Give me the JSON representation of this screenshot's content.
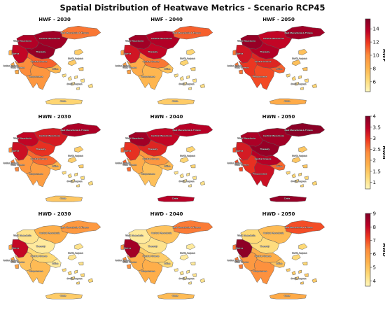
{
  "title": "Spatial Distribution of Heatwave Metrics - Scenario RCP45",
  "region_labels": {
    "epirus": "Epirus",
    "thessaly": "Thessaly",
    "ionian": "Ionian Islands",
    "north_aegean": "North Aegean",
    "south_aegean": "South Aegean",
    "east_mac": "East Macedonia & Thrace",
    "central_mac": "Central Macedonia",
    "west_mac": "West Macedonia",
    "west_greece": "West Greece",
    "central_greece": "Central Greece",
    "attica": "Attica",
    "peloponnese": "Peloponnese",
    "crete": "Crete"
  },
  "colormap": [
    "#fff7bc",
    "#fed976",
    "#feb24c",
    "#fd8d3c",
    "#f03b20",
    "#bd0026",
    "#800026"
  ],
  "rows": [
    {
      "metric": "HWF",
      "cbar_label": "HWF",
      "range": [
        4.5,
        15.5
      ],
      "ticks": [
        6,
        8,
        10,
        12,
        14
      ],
      "panels": [
        {
          "title": "HWF - 2030",
          "values": {
            "east_mac": 10.5,
            "central_mac": 14.5,
            "west_mac": 14.0,
            "epirus": 13.5,
            "thessaly": 14.8,
            "ionian": 8.5,
            "west_greece": 10.0,
            "central_greece": 11.0,
            "attica": 8.0,
            "peloponnese": 9.5,
            "north_aegean": 7.0,
            "south_aegean": 6.0,
            "crete": 6.5
          }
        },
        {
          "title": "HWF - 2040",
          "values": {
            "east_mac": 11.0,
            "central_mac": 14.0,
            "west_mac": 14.5,
            "epirus": 13.0,
            "thessaly": 13.5,
            "ionian": 9.0,
            "west_greece": 8.5,
            "central_greece": 10.5,
            "attica": 7.5,
            "peloponnese": 8.0,
            "north_aegean": 6.5,
            "south_aegean": 6.0,
            "crete": 7.0
          }
        },
        {
          "title": "HWF - 2050",
          "values": {
            "east_mac": 14.5,
            "central_mac": 13.5,
            "west_mac": 14.8,
            "epirus": 13.0,
            "thessaly": 14.0,
            "ionian": 10.5,
            "west_greece": 12.0,
            "central_greece": 12.5,
            "attica": 11.0,
            "peloponnese": 11.5,
            "north_aegean": 7.5,
            "south_aegean": 6.5,
            "crete": 8.5
          }
        }
      ]
    },
    {
      "metric": "HWN",
      "cbar_label": "HWN",
      "range": [
        0.7,
        4.0
      ],
      "ticks": [
        1.0,
        1.5,
        2.0,
        2.5,
        3.0,
        3.5,
        4.0
      ],
      "panels": [
        {
          "title": "HWN - 2030",
          "values": {
            "east_mac": 3.6,
            "central_mac": 3.2,
            "west_mac": 3.4,
            "epirus": 3.3,
            "thessaly": 3.0,
            "ionian": 2.4,
            "west_greece": 2.2,
            "central_greece": 2.6,
            "attica": 1.8,
            "peloponnese": 2.1,
            "north_aegean": 1.4,
            "south_aegean": 1.2,
            "crete": 1.5
          }
        },
        {
          "title": "HWN - 2040",
          "values": {
            "east_mac": 3.5,
            "central_mac": 3.4,
            "west_mac": 3.7,
            "epirus": 3.0,
            "thessaly": 3.1,
            "ionian": 2.6,
            "west_greece": 1.9,
            "central_greece": 2.2,
            "attica": 1.7,
            "peloponnese": 1.6,
            "north_aegean": 1.3,
            "south_aegean": 1.1,
            "crete": 3.5
          }
        },
        {
          "title": "HWN - 2050",
          "values": {
            "east_mac": 3.9,
            "central_mac": 3.7,
            "west_mac": 3.6,
            "epirus": 3.2,
            "thessaly": 3.8,
            "ionian": 2.8,
            "west_greece": 3.0,
            "central_greece": 3.5,
            "attica": 2.6,
            "peloponnese": 3.3,
            "north_aegean": 1.5,
            "south_aegean": 1.3,
            "crete": 3.8
          }
        }
      ]
    },
    {
      "metric": "HWD",
      "cbar_label": "HWD",
      "range": [
        3.6,
        9.0
      ],
      "ticks": [
        4,
        5,
        6,
        7,
        8,
        9
      ],
      "panels": [
        {
          "title": "HWD - 2030",
          "values": {
            "east_mac": 6.0,
            "central_mac": 5.5,
            "west_mac": 4.2,
            "epirus": 8.0,
            "thessaly": 4.0,
            "ionian": 5.8,
            "west_greece": 5.0,
            "central_greece": 4.5,
            "attica": 4.0,
            "peloponnese": 5.2,
            "north_aegean": 4.2,
            "south_aegean": 4.5,
            "crete": 4.8
          }
        },
        {
          "title": "HWD - 2040",
          "values": {
            "east_mac": 6.5,
            "central_mac": 5.0,
            "west_mac": 4.0,
            "epirus": 8.5,
            "thessaly": 4.2,
            "ionian": 6.2,
            "west_greece": 5.5,
            "central_greece": 4.8,
            "attica": 4.5,
            "peloponnese": 5.5,
            "north_aegean": 4.0,
            "south_aegean": 4.2,
            "crete": 5.2
          }
        },
        {
          "title": "HWD - 2050",
          "values": {
            "east_mac": 7.0,
            "central_mac": 5.2,
            "west_mac": 4.5,
            "epirus": 8.8,
            "thessaly": 4.4,
            "ionian": 6.5,
            "west_greece": 6.0,
            "central_greece": 5.5,
            "attica": 5.0,
            "peloponnese": 6.2,
            "north_aegean": 4.5,
            "south_aegean": 4.8,
            "crete": 5.6
          }
        }
      ]
    }
  ]
}
